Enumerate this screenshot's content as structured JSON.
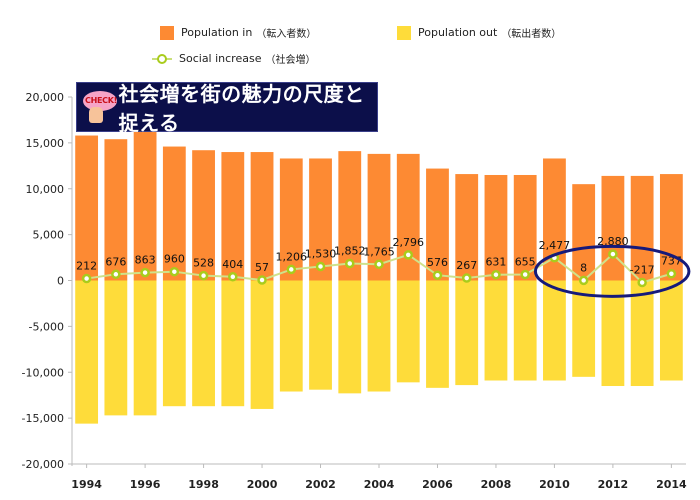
{
  "legend": {
    "in_label": "Population in",
    "in_paren": "（転入者数）",
    "out_label": "Population out",
    "out_paren": "（転出者数）",
    "social_label": "Social increase",
    "social_paren": "（社会増）"
  },
  "banner": {
    "badge_text": "CHECK!",
    "title": "社会増を街の魅力の尺度と捉える",
    "badge_icon": "pointing-hand-check-icon"
  },
  "colors": {
    "in": "#fd8a33",
    "out": "#fedc3a",
    "social": "#a9cc1c",
    "highlight": "#161a7a",
    "banner_bg": "#0c0f4a"
  },
  "chart_data": {
    "type": "bar",
    "years": [
      1994,
      1995,
      1996,
      1997,
      1998,
      1999,
      2000,
      2001,
      2002,
      2003,
      2004,
      2005,
      2006,
      2007,
      2008,
      2009,
      2010,
      2011,
      2012,
      2013,
      2014
    ],
    "series": [
      {
        "name": "Population in（転入者数）",
        "values": [
          15800,
          15400,
          16500,
          14600,
          14200,
          14000,
          14000,
          13300,
          13300,
          14100,
          13800,
          13800,
          12200,
          11600,
          11500,
          11500,
          13300,
          10500,
          11400,
          11400,
          11600
        ]
      },
      {
        "name": "Population out（転出者数）",
        "values": [
          -15600,
          -14700,
          -14700,
          -13700,
          -13700,
          -13700,
          -14000,
          -12100,
          -11900,
          -12300,
          -12100,
          -11100,
          -11700,
          -11400,
          -10900,
          -10900,
          -10900,
          -10500,
          -11500,
          -11500,
          -10900
        ]
      },
      {
        "name": "Social increase（社会増）",
        "values": [
          212,
          676,
          863,
          960,
          528,
          404,
          57,
          1206,
          1530,
          1852,
          1765,
          2796,
          576,
          267,
          631,
          655,
          2477,
          8,
          2880,
          -217,
          737
        ]
      }
    ],
    "data_labels": [
      "212",
      "676",
      "863",
      "960",
      "528",
      "404",
      "57",
      "1,206",
      "1,530",
      "1,852",
      "1,765",
      "2,796",
      "576",
      "267",
      "631",
      "655",
      "2,477",
      "8",
      "2,880",
      "-217",
      "737"
    ],
    "y_ticks": [
      "20,000",
      "15,000",
      "10,000",
      "5,000",
      "0",
      "-5,000",
      "-10,000",
      "-15,000",
      "-20,000"
    ],
    "x_tick_labels": [
      "1994",
      "1996",
      "1998",
      "2000",
      "2002",
      "2004",
      "2006",
      "2008",
      "2010",
      "2012",
      "2014"
    ],
    "ylim": [
      -20000,
      20000
    ],
    "stacked_around_zero": true,
    "grid": false,
    "legend_position": "top",
    "highlight_years": [
      2010,
      2014
    ]
  }
}
